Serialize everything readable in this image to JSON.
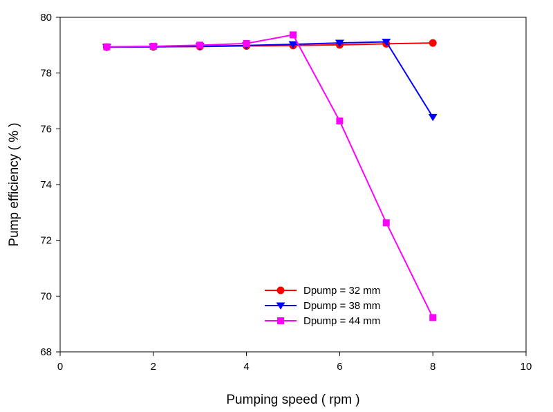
{
  "chart_data": {
    "type": "line",
    "title": "",
    "xlabel": "Pumping speed ( rpm )",
    "ylabel": "Pump efficiency ( % )",
    "xlim": [
      0,
      10
    ],
    "ylim": [
      68,
      80
    ],
    "xticks": [
      0,
      2,
      4,
      6,
      8,
      10
    ],
    "yticks": [
      68,
      70,
      72,
      74,
      76,
      78,
      80
    ],
    "grid": false,
    "legend_position": "bottom-right",
    "series": [
      {
        "name": "Dpump = 32 mm",
        "color": "#ff0000",
        "marker": "circle",
        "x": [
          1,
          2,
          3,
          4,
          5,
          6,
          7,
          8
        ],
        "y": [
          78.93,
          78.94,
          78.95,
          78.97,
          78.99,
          79.01,
          79.05,
          79.08
        ]
      },
      {
        "name": "Dpump = 38 mm",
        "color": "#0000ff",
        "marker": "triangle-down",
        "x": [
          1,
          2,
          3,
          4,
          5,
          6,
          7,
          8
        ],
        "y": [
          78.93,
          78.94,
          78.96,
          78.99,
          79.03,
          79.08,
          79.12,
          76.42
        ]
      },
      {
        "name": "Dpump = 44 mm",
        "color": "#ff00ff",
        "marker": "square",
        "x": [
          1,
          2,
          3,
          4,
          5,
          6,
          7,
          8
        ],
        "y": [
          78.94,
          78.96,
          79.0,
          79.06,
          79.37,
          76.28,
          72.63,
          69.23
        ]
      }
    ]
  }
}
